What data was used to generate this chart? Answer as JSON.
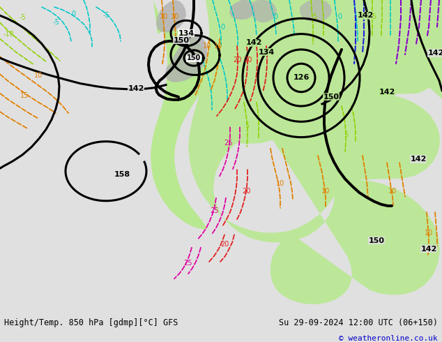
{
  "title_left": "Height/Temp. 850 hPa [gdmp][°C] GFS",
  "title_right": "Su 29-09-2024 12:00 UTC (06+150)",
  "copyright": "© weatheronline.co.uk",
  "bg_map_color": "#e0e0e0",
  "green_color": "#b8e890",
  "gray_color": "#b0b0b0",
  "fig_width": 6.34,
  "fig_height": 4.9,
  "dpi": 100,
  "bottom_bg": "#e8e8e8",
  "title_fontsize": 8.5,
  "copyright_color": "#0000cc",
  "copyright_fontsize": 8
}
